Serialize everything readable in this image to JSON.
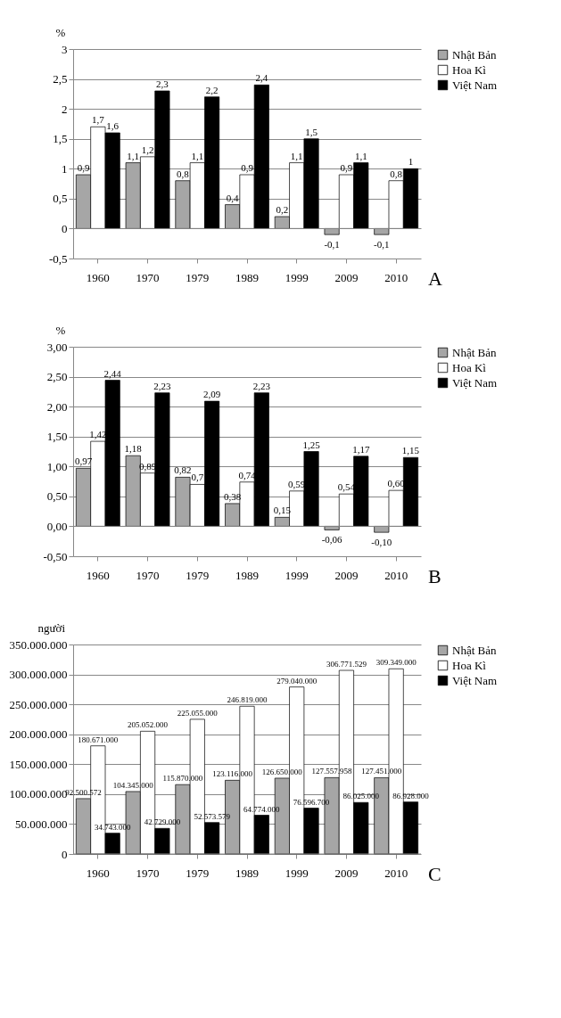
{
  "chart_data": [
    {
      "type": "bar",
      "title": "A",
      "ylabel": "%",
      "categories": [
        "1960",
        "1970",
        "1979",
        "1989",
        "1999",
        "2009",
        "2010"
      ],
      "series": [
        {
          "name": "Nhật Bản",
          "color": "#a6a6a6",
          "values": [
            0.9,
            1.1,
            0.8,
            0.4,
            0.2,
            -0.1,
            -0.1
          ],
          "value_labels": [
            "0,9",
            "1,1",
            "0,8",
            "0,4",
            "0,2",
            "-0,1",
            "-0,1"
          ]
        },
        {
          "name": "Hoa Kì",
          "color": "#ffffff",
          "values": [
            1.7,
            1.2,
            1.1,
            0.9,
            1.1,
            0.9,
            0.8
          ],
          "value_labels": [
            "1,7",
            "1,2",
            "1,1",
            "0,9",
            "1,1",
            "0,9",
            "0,8"
          ]
        },
        {
          "name": "Việt Nam",
          "color": "#000000",
          "values": [
            1.6,
            2.3,
            2.2,
            2.4,
            1.5,
            1.1,
            1.0
          ],
          "value_labels": [
            "1,6",
            "2,3",
            "2,2",
            "2,4",
            "1,5",
            "1,1",
            "1"
          ]
        }
      ],
      "ylim": [
        -0.5,
        3
      ],
      "yticks": [
        {
          "value": -0.5,
          "label": "-0,5"
        },
        0,
        {
          "value": 0.5,
          "label": "0,5"
        },
        1,
        {
          "value": 1.5,
          "label": "1,5"
        },
        2,
        {
          "value": 2.5,
          "label": "2,5"
        },
        3
      ],
      "grid": "y",
      "legend": "right"
    },
    {
      "type": "bar",
      "title": "B",
      "ylabel": "%",
      "categories": [
        "1960",
        "1970",
        "1979",
        "1989",
        "1999",
        "2009",
        "2010"
      ],
      "series": [
        {
          "name": "Nhật Bản",
          "color": "#a6a6a6",
          "values": [
            0.97,
            1.18,
            0.82,
            0.38,
            0.15,
            -0.06,
            -0.1
          ],
          "value_labels": [
            "0,97",
            "1,18",
            "0,82",
            "0,38",
            "0,15",
            "-0,06",
            "-0,10"
          ]
        },
        {
          "name": "Hoa Kì",
          "color": "#ffffff",
          "values": [
            1.42,
            0.89,
            0.7,
            0.74,
            0.59,
            0.54,
            0.6
          ],
          "value_labels": [
            "1,42",
            "0,89",
            "0,7",
            "0,74",
            "0,59",
            "0,54",
            "0,60"
          ]
        },
        {
          "name": "Việt Nam",
          "color": "#000000",
          "values": [
            2.44,
            2.23,
            2.09,
            2.23,
            1.25,
            1.17,
            1.15
          ],
          "value_labels": [
            "2,44",
            "2,23",
            "2,09",
            "2,23",
            "1,25",
            "1,17",
            "1,15"
          ]
        }
      ],
      "ylim": [
        -0.5,
        3
      ],
      "yticks": [
        {
          "value": -0.5,
          "label": "-0,50"
        },
        {
          "value": 0,
          "label": "0,00"
        },
        {
          "value": 0.5,
          "label": "0,50"
        },
        {
          "value": 1,
          "label": "1,00"
        },
        {
          "value": 1.5,
          "label": "1,50"
        },
        {
          "value": 2,
          "label": "2,00"
        },
        {
          "value": 2.5,
          "label": "2,50"
        },
        {
          "value": 3,
          "label": "3,00"
        }
      ],
      "grid": "y",
      "legend": "right"
    },
    {
      "type": "bar",
      "title": "C",
      "ylabel": "người",
      "categories": [
        "1960",
        "1970",
        "1979",
        "1989",
        "1999",
        "2009",
        "2010"
      ],
      "series": [
        {
          "name": "Nhật Bản",
          "color": "#a6a6a6",
          "values": [
            92500572,
            104345000,
            115870000,
            123116000,
            126650000,
            127557958,
            127451000
          ],
          "value_labels": [
            "92.500.572",
            "104.345.000",
            "115.870.000",
            "123.116.000",
            "126.650.000",
            "127.557.958",
            "127.451.000"
          ]
        },
        {
          "name": "Hoa Kì",
          "color": "#ffffff",
          "values": [
            180671000,
            205052000,
            225055000,
            246819000,
            279040000,
            306771529,
            309349000
          ],
          "value_labels": [
            "180.671.000",
            "205.052.000",
            "225.055.000",
            "246.819.000",
            "279.040.000",
            "306.771.529",
            "309.349.000"
          ]
        },
        {
          "name": "Việt Nam",
          "color": "#000000",
          "values": [
            34743000,
            42729000,
            52573579,
            64774000,
            76596700,
            86025000,
            86928000
          ],
          "value_labels": [
            "34.743.000",
            "42.729.000",
            "52.573.579",
            "64.774.000",
            "76.596.700",
            "86.025.000",
            "86.928.000"
          ]
        }
      ],
      "ylim": [
        0,
        350000000
      ],
      "yticks": [
        0,
        {
          "value": 50000000,
          "label": "50.000.000"
        },
        {
          "value": 100000000,
          "label": "100.000.000"
        },
        {
          "value": 150000000,
          "label": "150.000.000"
        },
        {
          "value": 200000000,
          "label": "200.000.000"
        },
        {
          "value": 250000000,
          "label": "250.000.000"
        },
        {
          "value": 300000000,
          "label": "300.000.000"
        },
        {
          "value": 350000000,
          "label": "350.000.000"
        }
      ],
      "grid": "y",
      "legend": "right"
    }
  ]
}
